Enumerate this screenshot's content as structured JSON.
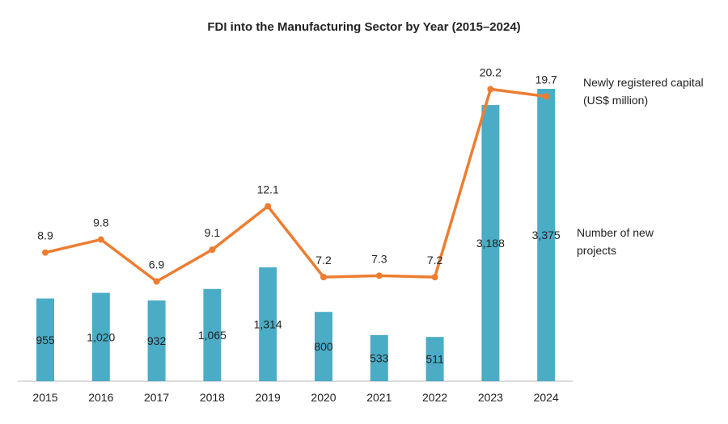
{
  "chart_data": {
    "type": "bar+line",
    "title": "FDI into the Manufacturing Sector by Year (2015–2024)",
    "categories": [
      "2015",
      "2016",
      "2017",
      "2018",
      "2019",
      "2020",
      "2021",
      "2022",
      "2023",
      "2024"
    ],
    "series": [
      {
        "name": "Number of new projects",
        "type": "bar",
        "color": "#4BACC6",
        "values": [
          955,
          1020,
          932,
          1065,
          1314,
          800,
          533,
          511,
          3188,
          3375
        ],
        "labels": [
          "955",
          "1,020",
          "932",
          "1,065",
          "1,314",
          "800",
          "533",
          "511",
          "3,188",
          "3,375"
        ]
      },
      {
        "name": "Newly registered capital (US$ million)",
        "type": "line",
        "color": "#ED7D31",
        "values": [
          8.9,
          9.8,
          6.9,
          9.1,
          12.1,
          7.2,
          7.3,
          7.2,
          20.2,
          19.7
        ],
        "labels": [
          "8.9",
          "9.8",
          "6.9",
          "9.1",
          "12.1",
          "7.2",
          "7.3",
          "7.2",
          "20.2",
          "19.7"
        ]
      }
    ],
    "legend": {
      "line_label_1": "Newly registered capital",
      "line_label_2": "(US$ million)",
      "bar_label_1": "Number of new",
      "bar_label_2": "projects",
      "placement": "right"
    },
    "grid": false
  }
}
